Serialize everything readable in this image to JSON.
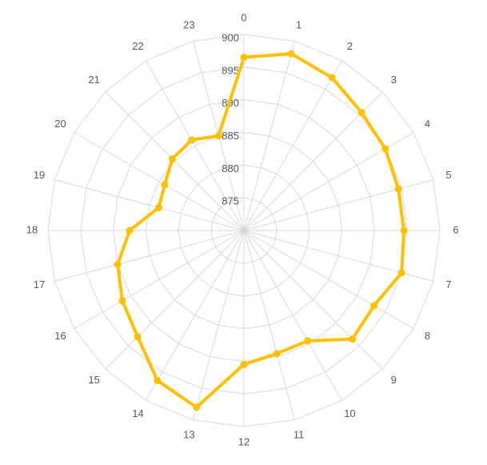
{
  "chart_data": {
    "type": "radar",
    "title": "",
    "categories": [
      "0",
      "1",
      "2",
      "3",
      "4",
      "5",
      "6",
      "7",
      "8",
      "9",
      "10",
      "11",
      "12",
      "13",
      "14",
      "15",
      "16",
      "17",
      "18",
      "19",
      "20",
      "21",
      "22",
      "23"
    ],
    "series": [
      {
        "values": [
          896.5,
          898.0,
          897.0,
          895.5,
          895.0,
          894.5,
          894.5,
          895.0,
          893.0,
          893.5,
          889.5,
          889.5,
          890.5,
          898.0,
          896.5,
          893.0,
          891.5,
          890.0,
          887.5,
          883.5,
          884.0,
          885.5,
          886.0,
          885.0
        ],
        "color": "#ffc000"
      }
    ],
    "rlim": [
      870,
      900
    ],
    "rticks": [
      875,
      880,
      885,
      890,
      895,
      900
    ],
    "grid": true,
    "legend": "none"
  }
}
